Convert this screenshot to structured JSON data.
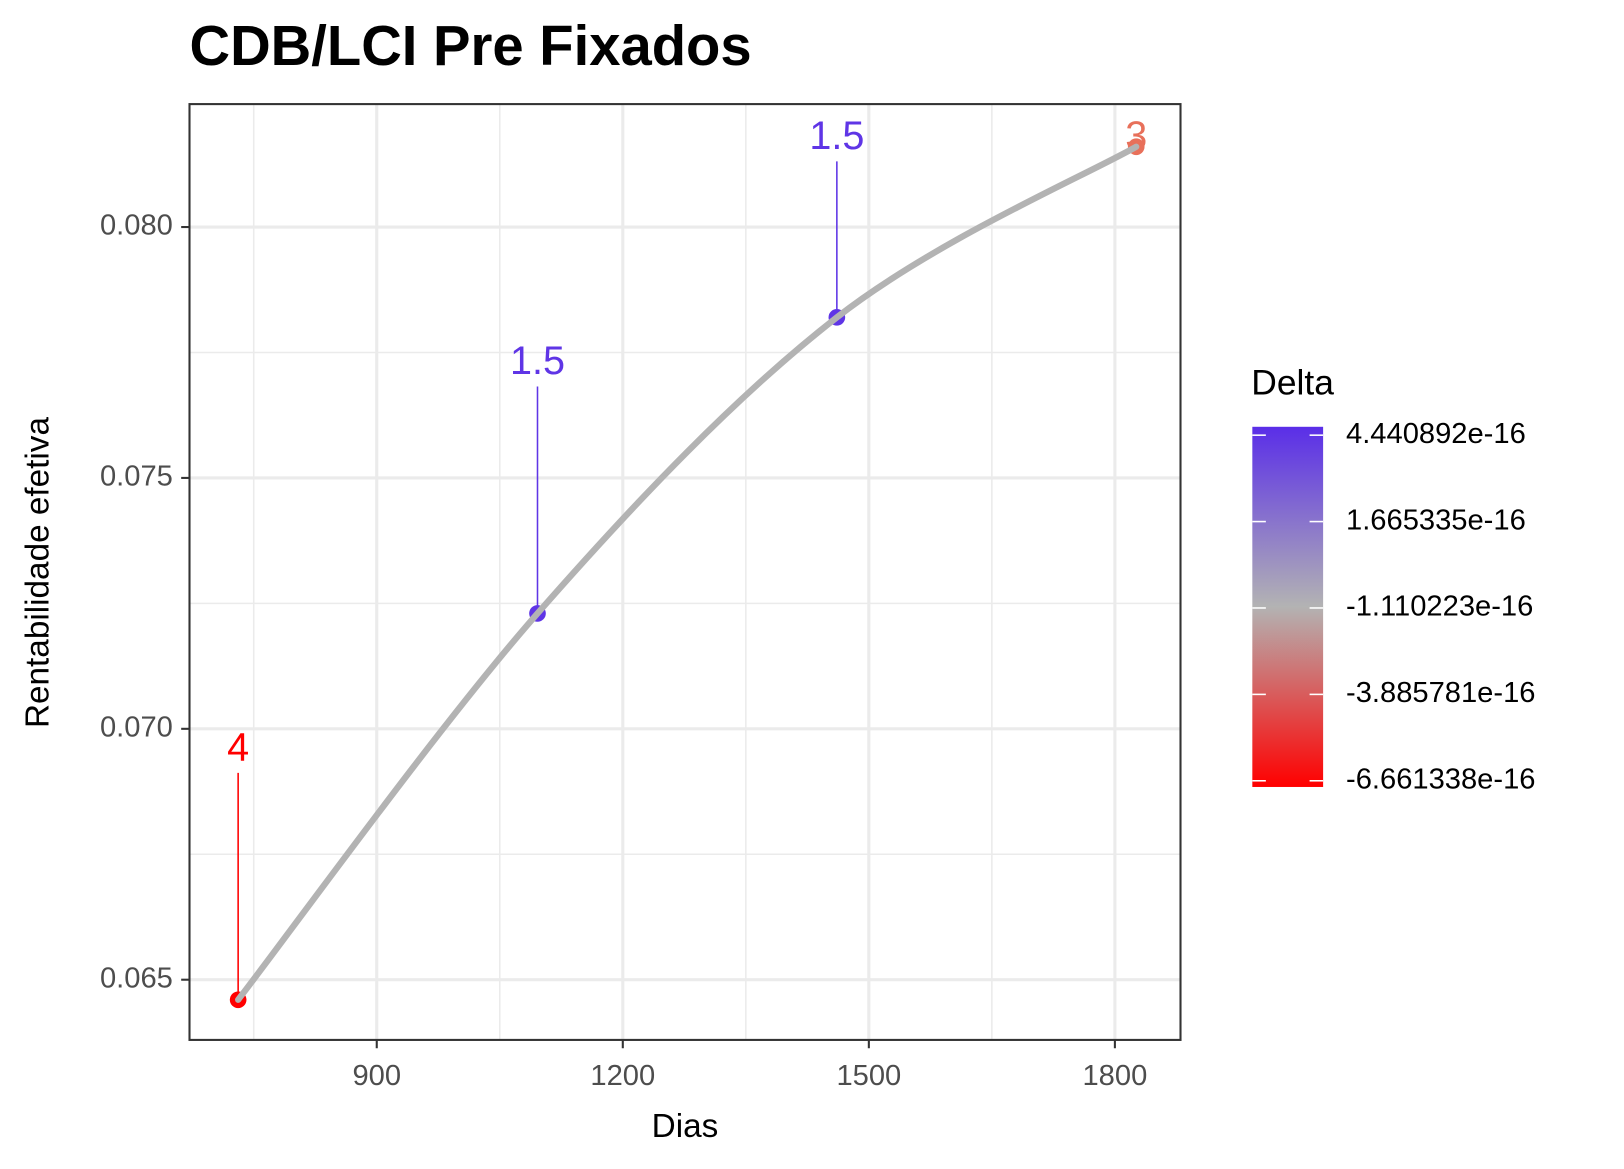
{
  "chart_data": {
    "type": "line",
    "title": "CDB/LCI Pre Fixados",
    "x_label": "Dias",
    "y_label": "Rentabilidade efetiva",
    "x": [
      731,
      1096,
      1461,
      1826
    ],
    "series": [
      {
        "color": "#b3b3b3",
        "values": [
          0.0646,
          0.0723,
          0.0782,
          0.0816
        ],
        "point_colors": [
          "#ff0000",
          "#5f35e6",
          "#5f35e6",
          "#e8705a"
        ],
        "value_labels": [
          "4",
          "1.5",
          "1.5",
          "3"
        ]
      }
    ],
    "xlim": [
      671.7,
      1880
    ],
    "xticks": [
      900,
      1200,
      1500,
      1800
    ],
    "x_minor_grid": [
      750,
      1050,
      1350,
      1650
    ],
    "ylim": [
      0.0638,
      0.08245
    ],
    "yticks": [
      {
        "value": 0.065,
        "label": "0.065"
      },
      {
        "value": 0.07,
        "label": "0.070"
      },
      {
        "value": 0.075,
        "label": "0.075"
      },
      {
        "value": 0.08,
        "label": "0.080"
      }
    ],
    "y_minor_grid": [
      0.0675,
      0.0725,
      0.0775
    ],
    "grid": true,
    "legend": {
      "title": "Delta",
      "position": "right",
      "lim": [
        -6.86e-16,
        4.71e-16
      ],
      "colors": [
        "#ff0000",
        "#b3b3b3",
        "#5a2ee8"
      ],
      "ticks": [
        -6.661338e-16,
        -3.885781e-16,
        -1.110223e-16,
        1.665335e-16,
        4.440892e-16
      ]
    }
  }
}
